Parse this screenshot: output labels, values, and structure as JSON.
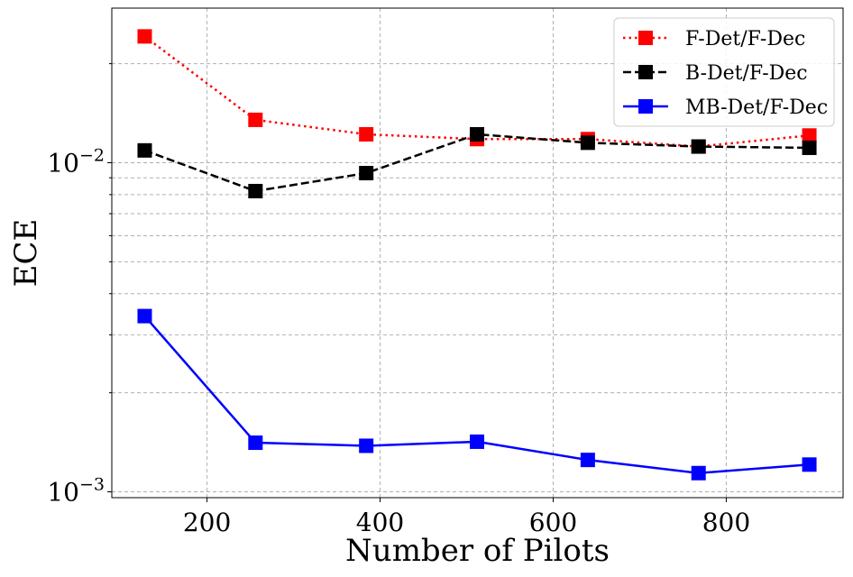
{
  "chart_data": {
    "type": "line",
    "xlabel": "Number of Pilots",
    "ylabel": "ECE",
    "xlim": [
      90,
      935
    ],
    "ylim": [
      0.00096,
      0.0295
    ],
    "yscale": "log",
    "grid": true,
    "legend_position": "top-right",
    "x_ticks": [
      200,
      400,
      600,
      800
    ],
    "y_ticks": [
      {
        "value": 0.001,
        "base": "10",
        "exp": "−3"
      },
      {
        "value": 0.01,
        "base": "10",
        "exp": "−2"
      }
    ],
    "x": [
      128,
      256,
      384,
      512,
      640,
      768,
      896
    ],
    "series": [
      {
        "name": "F-Det/F-Dec",
        "color": "#ff0000",
        "linestyle": "dotted",
        "marker": "square",
        "values": [
          0.0242,
          0.0135,
          0.0122,
          0.0118,
          0.0118,
          0.0112,
          0.0121
        ]
      },
      {
        "name": "B-Det/F-Dec",
        "color": "#000000",
        "linestyle": "dashed",
        "marker": "square",
        "values": [
          0.0109,
          0.0082,
          0.0093,
          0.0122,
          0.0115,
          0.0112,
          0.0111
        ]
      },
      {
        "name": "MB-Det/F-Dec",
        "color": "#0000ff",
        "linestyle": "solid",
        "marker": "square",
        "values": [
          0.00342,
          0.00141,
          0.00138,
          0.00142,
          0.00125,
          0.00114,
          0.00121
        ]
      }
    ]
  }
}
